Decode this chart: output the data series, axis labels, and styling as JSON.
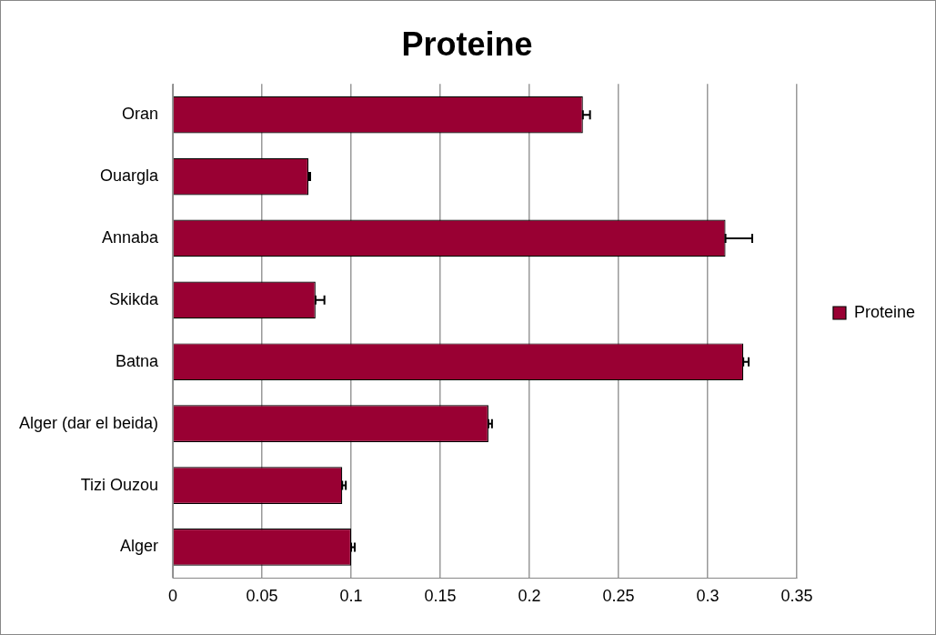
{
  "chart_data": {
    "type": "bar",
    "orientation": "horizontal",
    "title": "Proteine",
    "categories": [
      "Oran",
      "Ouargla",
      "Annaba",
      "Skikda",
      "Batna",
      "Alger (dar el beida)",
      "Tizi Ouzou",
      "Alger"
    ],
    "series": [
      {
        "name": "Proteine",
        "color": "#990033",
        "values": [
          0.23,
          0.076,
          0.31,
          0.08,
          0.32,
          0.177,
          0.095,
          0.1
        ],
        "errors": [
          [
            0.23,
            0.234
          ],
          [
            0.076,
            0.077
          ],
          [
            0.31,
            0.325
          ],
          [
            0.08,
            0.085
          ],
          [
            0.32,
            0.323
          ],
          [
            0.177,
            0.179
          ],
          [
            0.095,
            0.097
          ],
          [
            0.1,
            0.102
          ]
        ]
      }
    ],
    "xlim": [
      0,
      0.35
    ],
    "xticks": [
      0,
      0.05,
      0.1,
      0.15,
      0.2,
      0.25,
      0.3,
      0.35
    ],
    "grid": "x",
    "legend": "right"
  }
}
